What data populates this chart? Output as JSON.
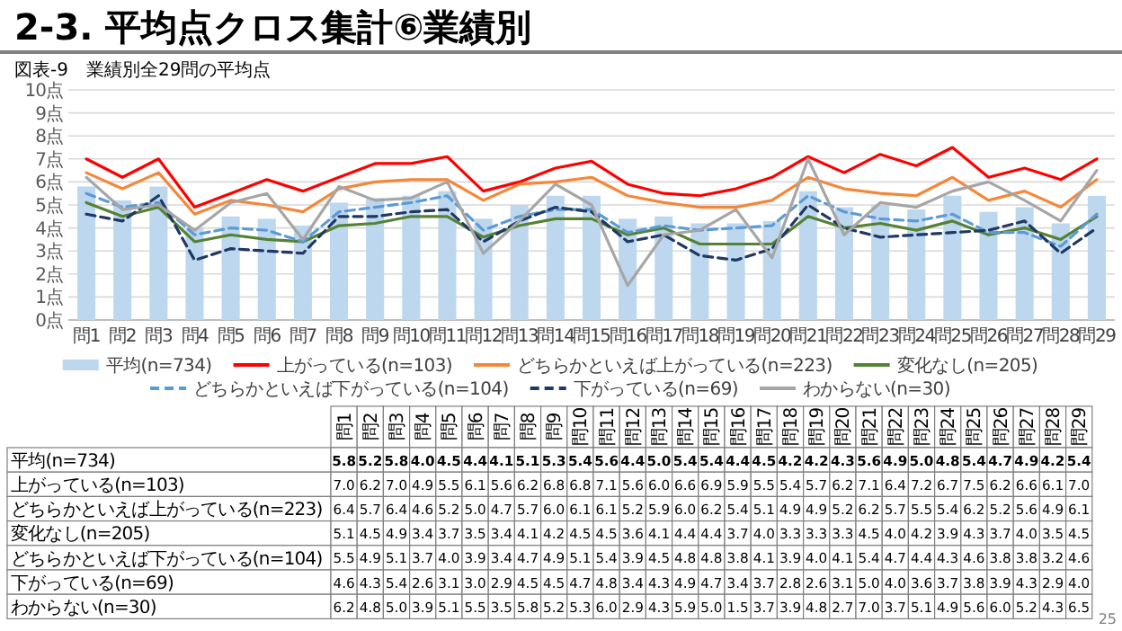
{
  "chart_data": [
    {
      "type": "bar",
      "title": "2-3. 平均点クロス集計⑥業績別",
      "subtitle": "図表-9　業績別全29問の平均点",
      "categories": [
        "問1",
        "問2",
        "問3",
        "問4",
        "問5",
        "問6",
        "問7",
        "問8",
        "問9",
        "問10",
        "問11",
        "問12",
        "問13",
        "問14",
        "問15",
        "問16",
        "問17",
        "問18",
        "問19",
        "問20",
        "問21",
        "問22",
        "問23",
        "問24",
        "問25",
        "問26",
        "問27",
        "問28",
        "問29"
      ],
      "series": [
        {
          "name": "平均(n=734)",
          "type": "bar",
          "color": "#bdd7ee",
          "values": [
            5.8,
            5.2,
            5.8,
            4.0,
            4.5,
            4.4,
            4.1,
            5.1,
            5.3,
            5.4,
            5.6,
            4.4,
            5.0,
            5.4,
            5.4,
            4.4,
            4.5,
            4.2,
            4.2,
            4.3,
            5.6,
            4.9,
            5.0,
            4.8,
            5.4,
            4.7,
            4.9,
            4.2,
            5.4
          ]
        },
        {
          "name": "上がっている(n=103)",
          "type": "line",
          "color": "#ff0000",
          "line_style": "solid",
          "values": [
            7.0,
            6.2,
            7.0,
            4.9,
            5.5,
            6.1,
            5.6,
            6.2,
            6.8,
            6.8,
            7.1,
            5.6,
            6.0,
            6.6,
            6.9,
            5.9,
            5.5,
            5.4,
            5.7,
            6.2,
            7.1,
            6.4,
            7.2,
            6.7,
            7.5,
            6.2,
            6.6,
            6.1,
            7.0
          ]
        },
        {
          "name": "どちらかといえば上がっている(n=223)",
          "type": "line",
          "color": "#f4883a",
          "line_style": "solid",
          "values": [
            6.4,
            5.7,
            6.4,
            4.6,
            5.2,
            5.0,
            4.7,
            5.7,
            6.0,
            6.1,
            6.1,
            5.2,
            5.9,
            6.0,
            6.2,
            5.4,
            5.1,
            4.9,
            4.9,
            5.2,
            6.2,
            5.7,
            5.5,
            5.4,
            6.2,
            5.2,
            5.6,
            4.9,
            6.1
          ]
        },
        {
          "name": "変化なし(n=205)",
          "type": "line",
          "color": "#548235",
          "line_style": "solid",
          "values": [
            5.1,
            4.5,
            4.9,
            3.4,
            3.7,
            3.5,
            3.4,
            4.1,
            4.2,
            4.5,
            4.5,
            3.6,
            4.1,
            4.4,
            4.4,
            3.7,
            4.0,
            3.3,
            3.3,
            3.3,
            4.5,
            4.0,
            4.2,
            3.9,
            4.3,
            3.7,
            4.0,
            3.5,
            4.5
          ]
        },
        {
          "name": "どちらかといえば下がっている(n=104)",
          "type": "line",
          "color": "#5b9bd5",
          "line_style": "dashed",
          "values": [
            5.5,
            4.9,
            5.1,
            3.7,
            4.0,
            3.9,
            3.4,
            4.7,
            4.9,
            5.1,
            5.4,
            3.9,
            4.5,
            4.8,
            4.8,
            3.8,
            4.1,
            3.9,
            4.0,
            4.1,
            5.4,
            4.7,
            4.4,
            4.3,
            4.6,
            3.8,
            3.8,
            3.2,
            4.6
          ]
        },
        {
          "name": "下がっている(n=69)",
          "type": "line",
          "color": "#203864",
          "line_style": "dashed",
          "values": [
            4.6,
            4.3,
            5.4,
            2.6,
            3.1,
            3.0,
            2.9,
            4.5,
            4.5,
            4.7,
            4.8,
            3.4,
            4.3,
            4.9,
            4.7,
            3.4,
            3.7,
            2.8,
            2.6,
            3.1,
            5.0,
            4.0,
            3.6,
            3.7,
            3.8,
            3.9,
            4.3,
            2.9,
            4.0
          ]
        },
        {
          "name": "わからない(n=30)",
          "type": "line",
          "color": "#a6a6a6",
          "line_style": "solid",
          "values": [
            6.2,
            4.8,
            5.0,
            3.9,
            5.1,
            5.5,
            3.5,
            5.8,
            5.2,
            5.3,
            6.0,
            2.9,
            4.3,
            5.9,
            5.0,
            1.5,
            3.7,
            3.9,
            4.8,
            2.7,
            7.0,
            3.7,
            5.1,
            4.9,
            5.6,
            6.0,
            5.2,
            4.3,
            6.5
          ]
        }
      ],
      "ylim": [
        0,
        10
      ],
      "yticks": [
        {
          "value": 0,
          "label": "0点"
        },
        {
          "value": 1,
          "label": "1点"
        },
        {
          "value": 2,
          "label": "2点"
        },
        {
          "value": 3,
          "label": "3点"
        },
        {
          "value": 4,
          "label": "4点"
        },
        {
          "value": 5,
          "label": "5点"
        },
        {
          "value": 6,
          "label": "6点"
        },
        {
          "value": 7,
          "label": "7点"
        },
        {
          "value": 8,
          "label": "8点"
        },
        {
          "value": 9,
          "label": "9点"
        },
        {
          "value": 10,
          "label": "10点"
        }
      ],
      "grid": "y",
      "legend": "bottom"
    },
    {
      "type": "heatmap",
      "categories": [
        "問1",
        "問2",
        "問3",
        "問4",
        "問5",
        "問6",
        "問7",
        "問8",
        "問9",
        "問10",
        "問11",
        "問12",
        "問13",
        "問14",
        "問15",
        "問16",
        "問17",
        "問18",
        "問19",
        "問20",
        "問21",
        "問22",
        "問23",
        "問24",
        "問25",
        "問26",
        "問27",
        "問28",
        "問29"
      ],
      "y_categories": [
        "平均(n=734)",
        "上がっている(n=103)",
        "どちらかといえば上がっている(n=223)",
        "変化なし(n=205)",
        "どちらかといえば下がっている(n=104)",
        "下がっている(n=69)",
        "わからない(n=30)"
      ],
      "cells": [
        [
          5.8,
          5.2,
          5.8,
          4.0,
          4.5,
          4.4,
          4.1,
          5.1,
          5.3,
          5.4,
          5.6,
          4.4,
          5.0,
          5.4,
          5.4,
          4.4,
          4.5,
          4.2,
          4.2,
          4.3,
          5.6,
          4.9,
          5.0,
          4.8,
          5.4,
          4.7,
          4.9,
          4.2,
          5.4
        ],
        [
          7.0,
          6.2,
          7.0,
          4.9,
          5.5,
          6.1,
          5.6,
          6.2,
          6.8,
          6.8,
          7.1,
          5.6,
          6.0,
          6.6,
          6.9,
          5.9,
          5.5,
          5.4,
          5.7,
          6.2,
          7.1,
          6.4,
          7.2,
          6.7,
          7.5,
          6.2,
          6.6,
          6.1,
          7.0
        ],
        [
          6.4,
          5.7,
          6.4,
          4.6,
          5.2,
          5.0,
          4.7,
          5.7,
          6.0,
          6.1,
          6.1,
          5.2,
          5.9,
          6.0,
          6.2,
          5.4,
          5.1,
          4.9,
          4.9,
          5.2,
          6.2,
          5.7,
          5.5,
          5.4,
          6.2,
          5.2,
          5.6,
          4.9,
          6.1
        ],
        [
          5.1,
          4.5,
          4.9,
          3.4,
          3.7,
          3.5,
          3.4,
          4.1,
          4.2,
          4.5,
          4.5,
          3.6,
          4.1,
          4.4,
          4.4,
          3.7,
          4.0,
          3.3,
          3.3,
          3.3,
          4.5,
          4.0,
          4.2,
          3.9,
          4.3,
          3.7,
          4.0,
          3.5,
          4.5
        ],
        [
          5.5,
          4.9,
          5.1,
          3.7,
          4.0,
          3.9,
          3.4,
          4.7,
          4.9,
          5.1,
          5.4,
          3.9,
          4.5,
          4.8,
          4.8,
          3.8,
          4.1,
          3.9,
          4.0,
          4.1,
          5.4,
          4.7,
          4.4,
          4.3,
          4.6,
          3.8,
          3.8,
          3.2,
          4.6
        ],
        [
          4.6,
          4.3,
          5.4,
          2.6,
          3.1,
          3.0,
          2.9,
          4.5,
          4.5,
          4.7,
          4.8,
          3.4,
          4.3,
          4.9,
          4.7,
          3.4,
          3.7,
          2.8,
          2.6,
          3.1,
          5.0,
          4.0,
          3.6,
          3.7,
          3.8,
          3.9,
          4.3,
          2.9,
          4.0
        ],
        [
          6.2,
          4.8,
          5.0,
          3.9,
          5.1,
          5.5,
          3.5,
          5.8,
          5.2,
          5.3,
          6.0,
          2.9,
          4.3,
          5.9,
          5.0,
          1.5,
          3.7,
          3.9,
          4.8,
          2.7,
          7.0,
          3.7,
          5.1,
          4.9,
          5.6,
          6.0,
          5.2,
          4.3,
          6.5
        ]
      ],
      "cell_labels": [
        [
          "5.8",
          "5.2",
          "5.8",
          "4.0",
          "4.5",
          "4.4",
          "4.1",
          "5.1",
          "5.3",
          "5.4",
          "5.6",
          "4.4",
          "5.0",
          "5.4",
          "5.4",
          "4.4",
          "4.5",
          "4.2",
          "4.2",
          "4.3",
          "5.6",
          "4.9",
          "5.0",
          "4.8",
          "5.4",
          "4.7",
          "4.9",
          "4.2",
          "5.4"
        ],
        [
          "7.0",
          "6.2",
          "7.0",
          "4.9",
          "5.5",
          "6.1",
          "5.6",
          "6.2",
          "6.8",
          "6.8",
          "7.1",
          "5.6",
          "6.0",
          "6.6",
          "6.9",
          "5.9",
          "5.5",
          "5.4",
          "5.7",
          "6.2",
          "7.1",
          "6.4",
          "7.2",
          "6.7",
          "7.5",
          "6.2",
          "6.6",
          "6.1",
          "7.0"
        ],
        [
          "6.4",
          "5.7",
          "6.4",
          "4.6",
          "5.2",
          "5.0",
          "4.7",
          "5.7",
          "6.0",
          "6.1",
          "6.1",
          "5.2",
          "5.9",
          "6.0",
          "6.2",
          "5.4",
          "5.1",
          "4.9",
          "4.9",
          "5.2",
          "6.2",
          "5.7",
          "5.5",
          "5.4",
          "6.2",
          "5.2",
          "5.6",
          "4.9",
          "6.1"
        ],
        [
          "5.1",
          "4.5",
          "4.9",
          "3.4",
          "3.7",
          "3.5",
          "3.4",
          "4.1",
          "4.2",
          "4.5",
          "4.5",
          "3.6",
          "4.1",
          "4.4",
          "4.4",
          "3.7",
          "4.0",
          "3.3",
          "3.3",
          "3.3",
          "4.5",
          "4.0",
          "4.2",
          "3.9",
          "4.3",
          "3.7",
          "4.0",
          "3.5",
          "4.5"
        ],
        [
          "5.5",
          "4.9",
          "5.1",
          "3.7",
          "4.0",
          "3.9",
          "3.4",
          "4.7",
          "4.9",
          "5.1",
          "5.4",
          "3.9",
          "4.5",
          "4.8",
          "4.8",
          "3.8",
          "4.1",
          "3.9",
          "4.0",
          "4.1",
          "5.4",
          "4.7",
          "4.4",
          "4.3",
          "4.6",
          "3.8",
          "3.8",
          "3.2",
          "4.6"
        ],
        [
          "4.6",
          "4.3",
          "5.4",
          "2.6",
          "3.1",
          "3.0",
          "2.9",
          "4.5",
          "4.5",
          "4.7",
          "4.8",
          "3.4",
          "4.3",
          "4.9",
          "4.7",
          "3.4",
          "3.7",
          "2.8",
          "2.6",
          "3.1",
          "5.0",
          "4.0",
          "3.6",
          "3.7",
          "3.8",
          "3.9",
          "4.3",
          "2.9",
          "4.0"
        ],
        [
          "6.2",
          "4.8",
          "5.0",
          "3.9",
          "5.1",
          "5.5",
          "3.5",
          "5.8",
          "5.2",
          "5.3",
          "6.0",
          "2.9",
          "4.3",
          "5.9",
          "5.0",
          "1.5",
          "3.7",
          "3.9",
          "4.8",
          "2.7",
          "7.0",
          "3.7",
          "5.1",
          "4.9",
          "5.6",
          "6.0",
          "5.2",
          "4.3",
          "6.5"
        ]
      ],
      "data_labels": true,
      "annotations": [
        "25"
      ]
    }
  ]
}
